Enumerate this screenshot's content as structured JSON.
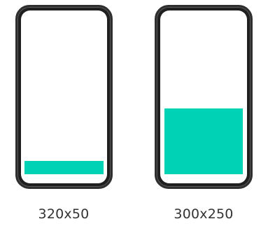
{
  "colors": {
    "accent": "#00d3b5",
    "phone_frame": "#1f1f1f",
    "screen": "#ffffff"
  },
  "phones": [
    {
      "caption": "320x50"
    },
    {
      "caption": "300x250"
    }
  ]
}
